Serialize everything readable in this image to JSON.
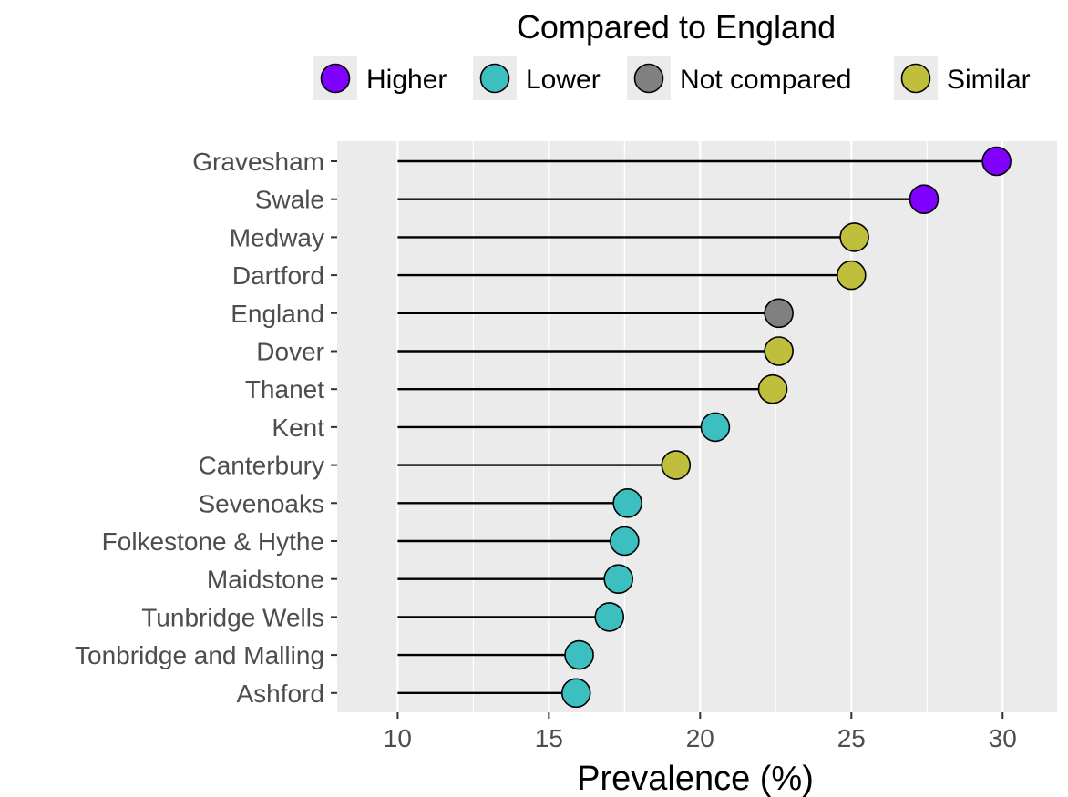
{
  "chart_data": {
    "type": "lollipop",
    "xlabel": "Prevalence (%)",
    "ylabel": "",
    "xlim": [
      8,
      31.8
    ],
    "x_ticks": [
      10,
      15,
      20,
      25,
      30
    ],
    "x_tick_labels": [
      "10",
      "15",
      "20",
      "25",
      "30"
    ],
    "grid": true,
    "segment_start": 10,
    "legend": {
      "title": "Compared to England",
      "position": "top",
      "entries": [
        {
          "label": "Higher",
          "color": "#8000ff"
        },
        {
          "label": "Lower",
          "color": "#3dbfbf"
        },
        {
          "label": "Not compared",
          "color": "#808080"
        },
        {
          "label": "Similar",
          "color": "#bfbf3d"
        }
      ]
    },
    "points": [
      {
        "category": "Gravesham",
        "value": 29.8,
        "group": "Higher"
      },
      {
        "category": "Swale",
        "value": 27.4,
        "group": "Higher"
      },
      {
        "category": "Medway",
        "value": 25.1,
        "group": "Similar"
      },
      {
        "category": "Dartford",
        "value": 25.0,
        "group": "Similar"
      },
      {
        "category": "England",
        "value": 22.6,
        "group": "Not compared"
      },
      {
        "category": "Dover",
        "value": 22.6,
        "group": "Similar"
      },
      {
        "category": "Thanet",
        "value": 22.4,
        "group": "Similar"
      },
      {
        "category": "Kent",
        "value": 20.5,
        "group": "Lower"
      },
      {
        "category": "Canterbury",
        "value": 19.2,
        "group": "Similar"
      },
      {
        "category": "Sevenoaks",
        "value": 17.6,
        "group": "Lower"
      },
      {
        "category": "Folkestone & Hythe",
        "value": 17.5,
        "group": "Lower"
      },
      {
        "category": "Maidstone",
        "value": 17.3,
        "group": "Lower"
      },
      {
        "category": "Tunbridge Wells",
        "value": 17.0,
        "group": "Lower"
      },
      {
        "category": "Tonbridge and Malling",
        "value": 16.0,
        "group": "Lower"
      },
      {
        "category": "Ashford",
        "value": 15.9,
        "group": "Lower"
      }
    ]
  },
  "colors": {
    "panel_background": "#ebebeb",
    "gridline": "#ffffff",
    "segment": "#000000",
    "point_outline": "#000000",
    "axis_text": "#4d4d4d",
    "tick_mark": "#333333"
  }
}
